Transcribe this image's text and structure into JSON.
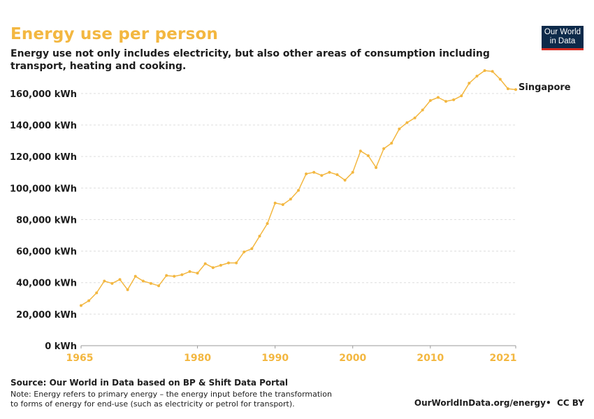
{
  "header": {
    "title": "Energy use per person",
    "subtitle": "Energy use not only includes electricity, but also other areas of consumption including transport, heating and cooking.",
    "logo_line1": "Our World",
    "logo_line2": "in Data"
  },
  "footer": {
    "source": "Source: Our World in Data based on BP & Shift Data Portal",
    "note": "Note: Energy refers to primary energy – the energy input before the transformation\n to forms of energy for end-use (such as electricity or petrol for transport).",
    "url": "OurWorldInData.org/energy",
    "license": "CC BY"
  },
  "colors": {
    "series": "#f3b740",
    "grid": "#dddddd",
    "text": "#1d1d1d",
    "logo_bg": "#0d2a4a",
    "logo_accent": "#d42b21"
  },
  "chart_data": {
    "type": "line",
    "y_unit": "kWh",
    "ylim": [
      0,
      175000
    ],
    "xlim": [
      1965,
      2021
    ],
    "y_ticks": [
      {
        "value": 0,
        "label": "0 kWh"
      },
      {
        "value": 20000,
        "label": "20,000 kWh"
      },
      {
        "value": 40000,
        "label": "40,000 kWh"
      },
      {
        "value": 60000,
        "label": "60,000 kWh"
      },
      {
        "value": 80000,
        "label": "80,000 kWh"
      },
      {
        "value": 100000,
        "label": "100,000 kWh"
      },
      {
        "value": 120000,
        "label": "120,000 kWh"
      },
      {
        "value": 140000,
        "label": "140,000 kWh"
      },
      {
        "value": 160000,
        "label": "160,000 kWh"
      }
    ],
    "x_ticks": [
      {
        "value": 1965,
        "label": "1965"
      },
      {
        "value": 1980,
        "label": "1980"
      },
      {
        "value": 1990,
        "label": "1990"
      },
      {
        "value": 2000,
        "label": "2000"
      },
      {
        "value": 2010,
        "label": "2010"
      },
      {
        "value": 2021,
        "label": "2021"
      }
    ],
    "grid": true,
    "series": [
      {
        "name": "Singapore",
        "x": [
          1965,
          1966,
          1967,
          1968,
          1969,
          1970,
          1971,
          1972,
          1973,
          1974,
          1975,
          1976,
          1977,
          1978,
          1979,
          1980,
          1981,
          1982,
          1983,
          1984,
          1985,
          1986,
          1987,
          1988,
          1989,
          1990,
          1991,
          1992,
          1993,
          1994,
          1995,
          1996,
          1997,
          1998,
          1999,
          2000,
          2001,
          2002,
          2003,
          2004,
          2005,
          2006,
          2007,
          2008,
          2009,
          2010,
          2011,
          2012,
          2013,
          2014,
          2015,
          2016,
          2017,
          2018,
          2019,
          2020,
          2021
        ],
        "y": [
          25500,
          28500,
          33500,
          41000,
          39500,
          42000,
          35500,
          44000,
          41000,
          39500,
          38000,
          44500,
          44000,
          45000,
          47000,
          46000,
          52000,
          49500,
          51000,
          52500,
          52500,
          59500,
          61500,
          69500,
          77500,
          90500,
          89500,
          93000,
          98500,
          109000,
          110000,
          108000,
          110000,
          108500,
          105000,
          110000,
          123500,
          120500,
          113000,
          125000,
          128500,
          137500,
          141500,
          144500,
          149500,
          155500,
          157500,
          155000,
          156000,
          158500,
          166500,
          171000,
          174500,
          174000,
          169000,
          163000,
          162500
        ]
      }
    ]
  }
}
